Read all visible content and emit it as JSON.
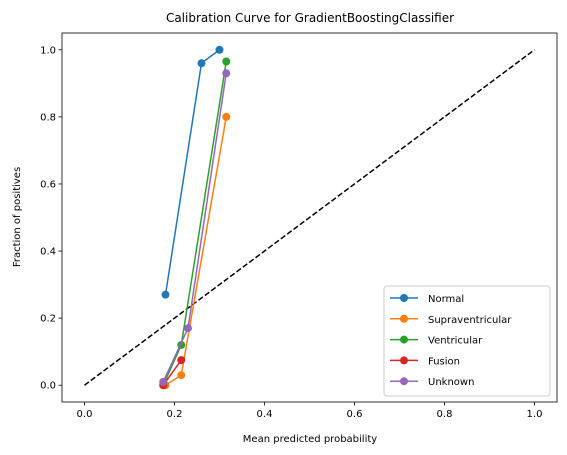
{
  "chart_data": {
    "type": "line",
    "title": "Calibration Curve for GradientBoostingClassifier",
    "xlabel": "Mean predicted probability",
    "ylabel": "Fraction of positives",
    "xlim": [
      -0.05,
      1.05
    ],
    "ylim": [
      -0.05,
      1.05
    ],
    "xticks": [
      0.0,
      0.2,
      0.4,
      0.6,
      0.8,
      1.0
    ],
    "xtick_labels": [
      "0.0",
      "0.2",
      "0.4",
      "0.6",
      "0.8",
      "1.0"
    ],
    "yticks": [
      0.0,
      0.2,
      0.4,
      0.6,
      0.8,
      1.0
    ],
    "ytick_labels": [
      "0.0",
      "0.2",
      "0.4",
      "0.6",
      "0.8",
      "1.0"
    ],
    "grid": false,
    "legend_position": "lower right",
    "reference_line": {
      "x": [
        0,
        1
      ],
      "y": [
        0,
        1
      ],
      "style": "dashed",
      "color": "#000000"
    },
    "series": [
      {
        "name": "Normal",
        "color": "#1f77b4",
        "x": [
          0.18,
          0.26,
          0.3
        ],
        "y": [
          0.27,
          0.96,
          1.0
        ]
      },
      {
        "name": "Supraventricular",
        "color": "#ff7f0e",
        "x": [
          0.18,
          0.215,
          0.315
        ],
        "y": [
          0.0,
          0.03,
          0.8
        ]
      },
      {
        "name": "Ventricular",
        "color": "#2ca02c",
        "x": [
          0.175,
          0.215,
          0.315
        ],
        "y": [
          0.0,
          0.12,
          0.965
        ]
      },
      {
        "name": "Fusion",
        "color": "#d62728",
        "x": [
          0.175,
          0.215
        ],
        "y": [
          0.0,
          0.075
        ]
      },
      {
        "name": "Unknown",
        "color": "#9467bd",
        "x": [
          0.175,
          0.23,
          0.315
        ],
        "y": [
          0.01,
          0.17,
          0.93
        ]
      }
    ]
  }
}
